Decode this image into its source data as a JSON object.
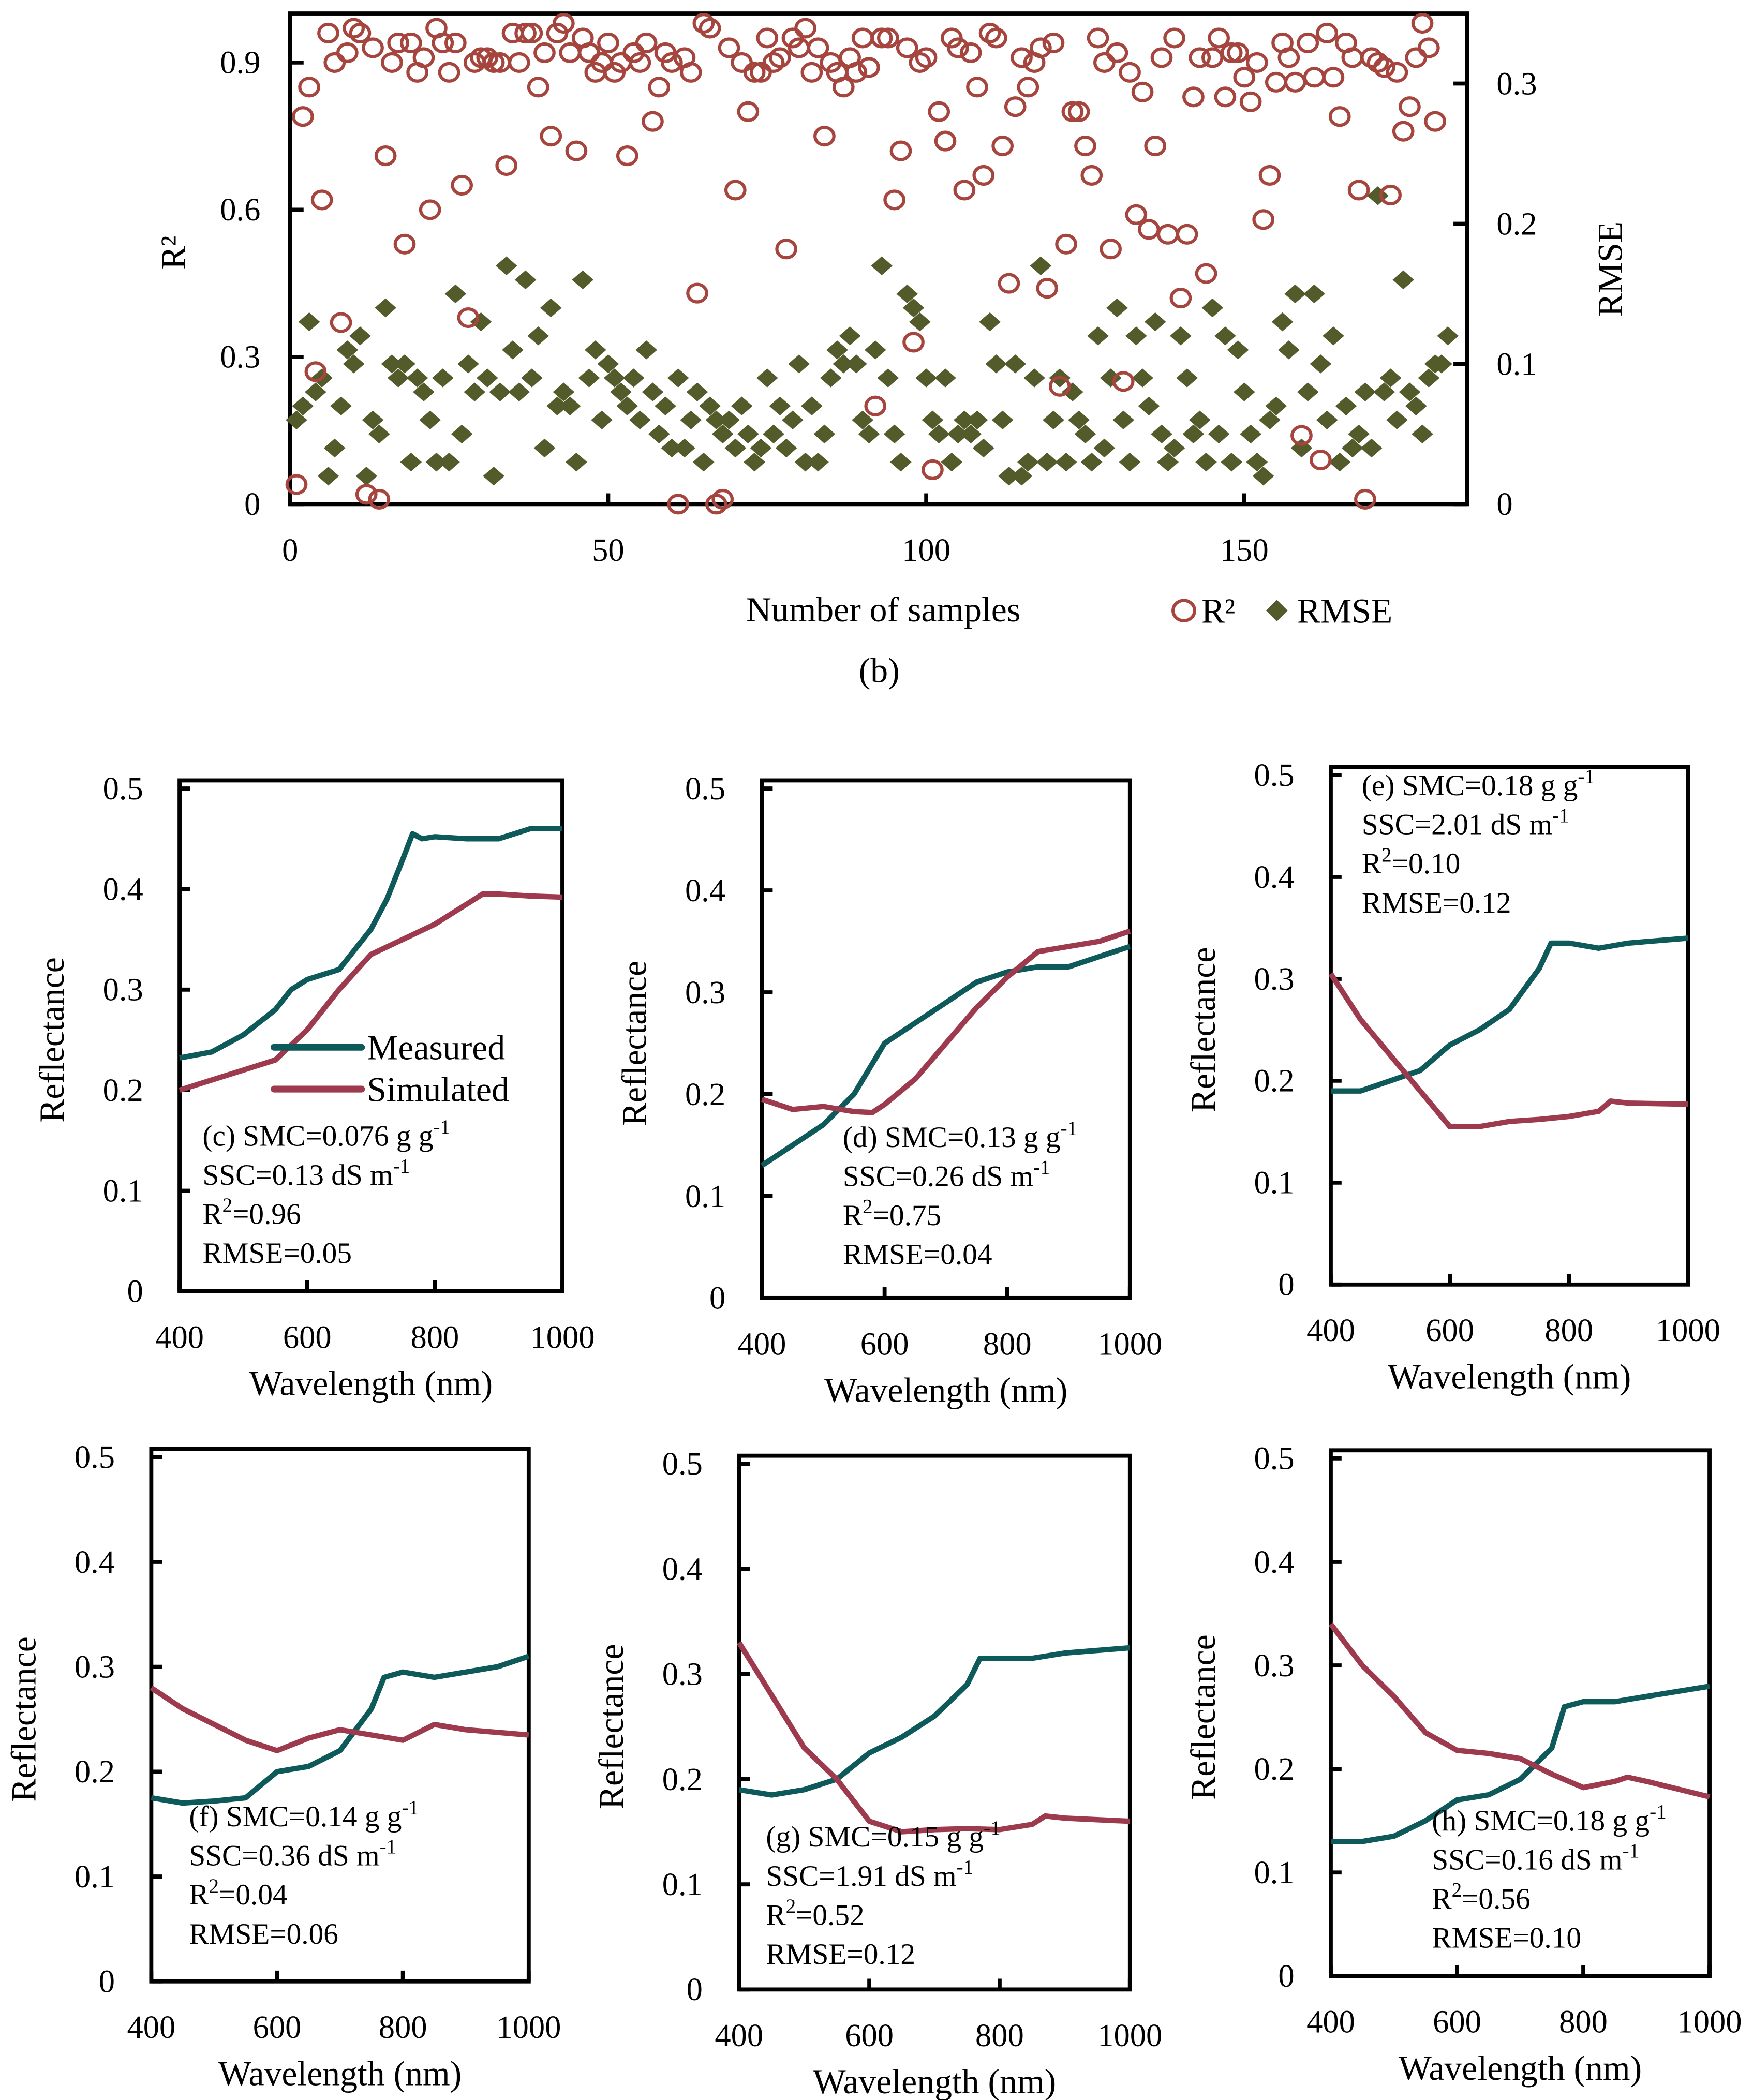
{
  "chart_data": [
    {
      "id": "b",
      "type": "scatter",
      "caption": "(b)",
      "xlabel": "Number of samples",
      "ylabel": "R²",
      "y2label": "RMSE",
      "xlim": [
        0,
        185
      ],
      "ylim": [
        0,
        1.0
      ],
      "y2lim": [
        0,
        0.35
      ],
      "xticks": [
        0,
        50,
        100,
        150
      ],
      "yticks": [
        0,
        0.3,
        0.6,
        0.9
      ],
      "y2ticks": [
        0,
        0.1,
        0.2,
        0.3
      ],
      "legend_position": "bottom-right",
      "series": [
        {
          "name": "R²",
          "axis": "left",
          "marker": "open-circle",
          "color": "#A5453E",
          "values": [
            0.04,
            0.79,
            0.85,
            0.27,
            0.62,
            0.96,
            0.9,
            0.37,
            0.92,
            0.97,
            0.96,
            0.02,
            0.93,
            0.01,
            0.71,
            0.9,
            0.94,
            0.53,
            0.94,
            0.88,
            0.91,
            0.6,
            0.97,
            0.94,
            0.88,
            0.94,
            0.65,
            0.38,
            0.9,
            0.91,
            0.91,
            0.9,
            0.9,
            0.69,
            0.96,
            0.9,
            0.96,
            0.96,
            0.85,
            0.92,
            0.75,
            0.96,
            0.98,
            0.92,
            0.72,
            0.95,
            0.92,
            0.88,
            0.9,
            0.94,
            0.88,
            0.9,
            0.71,
            0.92,
            0.9,
            0.94,
            0.78,
            0.85,
            0.92,
            0.9,
            0.0,
            0.91,
            0.88,
            0.43,
            0.98,
            0.97,
            0.0,
            0.01,
            0.93,
            0.64,
            0.9,
            0.8,
            0.88,
            0.88,
            0.95,
            0.9,
            0.91,
            0.52,
            0.95,
            0.93,
            0.97,
            0.88,
            0.93,
            0.75,
            0.9,
            0.88,
            0.85,
            0.91,
            0.88,
            0.95,
            0.89,
            0.2,
            0.95,
            0.95,
            0.62,
            0.72,
            0.93,
            0.33,
            0.9,
            0.91,
            0.07,
            0.8,
            0.74,
            0.95,
            0.93,
            0.64,
            0.92,
            0.85,
            0.67,
            0.96,
            0.95,
            0.73,
            0.45,
            0.81,
            0.91,
            0.85,
            0.9,
            0.93,
            0.44,
            0.94,
            0.24,
            0.53,
            0.8,
            0.8,
            0.73,
            0.67,
            0.95,
            0.9,
            0.52,
            0.92,
            0.25,
            0.88,
            0.59,
            0.84,
            0.56,
            0.73,
            0.91,
            0.55,
            0.95,
            0.42,
            0.55,
            0.83,
            0.91,
            0.47,
            0.91,
            0.95,
            0.83,
            0.92,
            0.92,
            0.87,
            0.82,
            0.9,
            0.58,
            0.67,
            0.86,
            0.94,
            0.91,
            0.86,
            0.14,
            0.94,
            0.87,
            0.09,
            0.96,
            0.87,
            0.79,
            0.94,
            0.91,
            0.64,
            0.01,
            0.91,
            0.9,
            0.89,
            0.63,
            0.88,
            0.76,
            0.81,
            0.91,
            0.98,
            0.93,
            0.78
          ]
        },
        {
          "name": "RMSE",
          "axis": "right",
          "marker": "filled-diamond",
          "color": "#535B2A",
          "values": [
            0.06,
            0.07,
            0.13,
            0.08,
            0.09,
            0.02,
            0.04,
            0.07,
            0.11,
            0.1,
            0.12,
            0.02,
            0.06,
            0.05,
            0.14,
            0.1,
            0.09,
            0.1,
            0.03,
            0.09,
            0.08,
            0.06,
            0.03,
            0.09,
            0.03,
            0.15,
            0.05,
            0.1,
            0.08,
            0.13,
            0.09,
            0.02,
            0.08,
            0.17,
            0.11,
            0.08,
            0.16,
            0.09,
            0.12,
            0.04,
            0.14,
            0.07,
            0.08,
            0.07,
            0.03,
            0.16,
            0.09,
            0.11,
            0.06,
            0.1,
            0.09,
            0.08,
            0.07,
            0.09,
            0.06,
            0.11,
            0.08,
            0.05,
            0.07,
            0.04,
            0.09,
            0.04,
            0.06,
            0.08,
            0.03,
            0.07,
            0.06,
            0.05,
            0.06,
            0.04,
            0.07,
            0.05,
            0.03,
            0.04,
            0.09,
            0.05,
            0.07,
            0.04,
            0.06,
            0.1,
            0.03,
            0.07,
            0.03,
            0.05,
            0.09,
            0.11,
            0.1,
            0.12,
            0.1,
            0.06,
            0.05,
            0.11,
            0.17,
            0.09,
            0.05,
            0.03,
            0.15,
            0.14,
            0.13,
            0.09,
            0.06,
            0.05,
            0.09,
            0.03,
            0.05,
            0.06,
            0.05,
            0.06,
            0.04,
            0.13,
            0.1,
            0.06,
            0.02,
            0.1,
            0.02,
            0.03,
            0.09,
            0.17,
            0.03,
            0.06,
            0.09,
            0.03,
            0.08,
            0.06,
            0.05,
            0.03,
            0.12,
            0.04,
            0.09,
            0.14,
            0.06,
            0.03,
            0.12,
            0.09,
            0.07,
            0.13,
            0.05,
            0.03,
            0.04,
            0.12,
            0.09,
            0.05,
            0.06,
            0.03,
            0.14,
            0.05,
            0.12,
            0.03,
            0.11,
            0.08,
            0.05,
            0.03,
            0.02,
            0.06,
            0.07,
            0.13,
            0.11,
            0.15,
            0.04,
            0.08,
            0.15,
            0.1,
            0.06,
            0.12,
            0.03,
            0.07,
            0.04,
            0.05,
            0.08,
            0.04,
            0.22,
            0.08,
            0.09,
            0.06,
            0.16,
            0.08,
            0.07,
            0.05,
            0.09,
            0.1,
            0.1,
            0.12
          ]
        }
      ]
    },
    {
      "id": "c",
      "type": "line",
      "xlabel": "Wavelength (nm)",
      "ylabel": "Reflectance",
      "xlim": [
        400,
        1000
      ],
      "ylim": [
        0,
        0.5
      ],
      "xticks": [
        400,
        600,
        800,
        1000
      ],
      "yticks": [
        0,
        0.1,
        0.2,
        0.3,
        0.4,
        0.5
      ],
      "legend": [
        "Measured",
        "Simulated"
      ],
      "legend_position": "middle-right",
      "annotation": [
        {
          "text": "(c) SMC=0.076 g g",
          "sup": "-1"
        },
        {
          "text": "SSC=0.13 dS m",
          "sup": "-1"
        },
        {
          "text": "R",
          "sup": "2",
          "after": "=0.96"
        },
        {
          "text": "RMSE=0.05"
        }
      ],
      "series": [
        {
          "name": "Measured",
          "color": "#0E5A5A",
          "x": [
            400,
            450,
            500,
            550,
            575,
            600,
            650,
            700,
            725,
            750,
            765,
            780,
            800,
            850,
            900,
            950,
            1000
          ],
          "y": [
            0.232,
            0.238,
            0.255,
            0.28,
            0.3,
            0.31,
            0.32,
            0.36,
            0.39,
            0.43,
            0.455,
            0.45,
            0.452,
            0.45,
            0.45,
            0.46,
            0.46
          ]
        },
        {
          "name": "Simulated",
          "color": "#9E3A4E",
          "x": [
            400,
            450,
            500,
            550,
            600,
            650,
            700,
            750,
            800,
            850,
            875,
            900,
            950,
            1000
          ],
          "y": [
            0.2,
            0.21,
            0.22,
            0.23,
            0.26,
            0.3,
            0.335,
            0.35,
            0.365,
            0.385,
            0.395,
            0.395,
            0.393,
            0.392
          ]
        }
      ]
    },
    {
      "id": "d",
      "type": "line",
      "xlabel": "Wavelength (nm)",
      "ylabel": "Reflectance",
      "xlim": [
        400,
        1000
      ],
      "ylim": [
        0,
        0.5
      ],
      "xticks": [
        400,
        600,
        800,
        1000
      ],
      "yticks": [
        0,
        0.1,
        0.2,
        0.3,
        0.4,
        0.5
      ],
      "annotation": [
        {
          "text": "(d) SMC=0.13 g g",
          "sup": "-1"
        },
        {
          "text": "SSC=0.26 dS m",
          "sup": "-1"
        },
        {
          "text": "R",
          "sup": "2",
          "after": "=0.75"
        },
        {
          "text": "RMSE=0.04"
        }
      ],
      "series": [
        {
          "name": "Measured",
          "color": "#0E5A5A",
          "x": [
            400,
            450,
            500,
            550,
            600,
            650,
            700,
            750,
            800,
            850,
            900,
            950,
            1000
          ],
          "y": [
            0.13,
            0.15,
            0.17,
            0.2,
            0.25,
            0.27,
            0.29,
            0.31,
            0.32,
            0.325,
            0.325,
            0.335,
            0.345
          ]
        },
        {
          "name": "Simulated",
          "color": "#9E3A4E",
          "x": [
            400,
            450,
            500,
            550,
            580,
            600,
            650,
            700,
            750,
            800,
            850,
            900,
            950,
            1000
          ],
          "y": [
            0.195,
            0.185,
            0.188,
            0.183,
            0.182,
            0.19,
            0.215,
            0.25,
            0.285,
            0.315,
            0.34,
            0.345,
            0.35,
            0.36
          ]
        }
      ]
    },
    {
      "id": "e",
      "type": "line",
      "xlabel": "Wavelength (nm)",
      "ylabel": "Reflectance",
      "xlim": [
        400,
        1000
      ],
      "ylim": [
        0,
        0.5
      ],
      "xticks": [
        400,
        600,
        800,
        1000
      ],
      "yticks": [
        0,
        0.1,
        0.2,
        0.3,
        0.4,
        0.5
      ],
      "annotation": [
        {
          "text": "(e) SMC=0.18 g g",
          "sup": "-1"
        },
        {
          "text": "SSC=2.01 dS m",
          "sup": "-1"
        },
        {
          "text": "R",
          "sup": "2",
          "after": "=0.10"
        },
        {
          "text": "RMSE=0.12"
        }
      ],
      "series": [
        {
          "name": "Measured",
          "color": "#0E5A5A",
          "x": [
            400,
            450,
            500,
            550,
            600,
            650,
            700,
            750,
            770,
            800,
            850,
            900,
            1000
          ],
          "y": [
            0.19,
            0.19,
            0.2,
            0.21,
            0.235,
            0.25,
            0.27,
            0.31,
            0.335,
            0.335,
            0.33,
            0.335,
            0.34
          ]
        },
        {
          "name": "Simulated",
          "color": "#9E3A4E",
          "x": [
            400,
            450,
            500,
            550,
            600,
            650,
            700,
            750,
            800,
            850,
            870,
            900,
            1000
          ],
          "y": [
            0.305,
            0.26,
            0.225,
            0.19,
            0.155,
            0.155,
            0.16,
            0.162,
            0.165,
            0.17,
            0.18,
            0.178,
            0.177
          ]
        }
      ]
    },
    {
      "id": "f",
      "type": "line",
      "xlabel": "Wavelength (nm)",
      "ylabel": "Reflectance",
      "xlim": [
        400,
        1000
      ],
      "ylim": [
        0,
        0.5
      ],
      "xticks": [
        400,
        600,
        800,
        1000
      ],
      "yticks": [
        0,
        0.1,
        0.2,
        0.3,
        0.4,
        0.5
      ],
      "annotation": [
        {
          "text": "(f) SMC=0.14 g g",
          "sup": "-1"
        },
        {
          "text": "SSC=0.36 dS m",
          "sup": "-1"
        },
        {
          "text": "R",
          "sup": "2",
          "after": "=0.04"
        },
        {
          "text": "RMSE=0.06"
        }
      ],
      "series": [
        {
          "name": "Measured",
          "color": "#0E5A5A",
          "x": [
            400,
            450,
            500,
            550,
            600,
            650,
            700,
            750,
            770,
            800,
            850,
            900,
            950,
            1000
          ],
          "y": [
            0.175,
            0.17,
            0.172,
            0.175,
            0.2,
            0.205,
            0.22,
            0.26,
            0.29,
            0.295,
            0.29,
            0.295,
            0.3,
            0.31
          ]
        },
        {
          "name": "Simulated",
          "color": "#9E3A4E",
          "x": [
            400,
            450,
            500,
            550,
            600,
            650,
            700,
            750,
            800,
            850,
            900,
            1000
          ],
          "y": [
            0.28,
            0.26,
            0.245,
            0.23,
            0.22,
            0.232,
            0.24,
            0.235,
            0.23,
            0.245,
            0.24,
            0.235
          ]
        }
      ]
    },
    {
      "id": "g",
      "type": "line",
      "xlabel": "Wavelength (nm)",
      "ylabel": "Reflectance",
      "xlim": [
        400,
        1000
      ],
      "ylim": [
        0,
        0.5
      ],
      "xticks": [
        400,
        600,
        800,
        1000
      ],
      "yticks": [
        0,
        0.1,
        0.2,
        0.3,
        0.4,
        0.5
      ],
      "annotation": [
        {
          "text": "(g) SMC=0.15 g g",
          "sup": "-1"
        },
        {
          "text": "SSC=1.91 dS m",
          "sup": "-1"
        },
        {
          "text": "R",
          "sup": "2",
          "after": "=0.52"
        },
        {
          "text": "RMSE=0.12"
        }
      ],
      "series": [
        {
          "name": "Measured",
          "color": "#0E5A5A",
          "x": [
            400,
            450,
            500,
            550,
            600,
            650,
            700,
            750,
            770,
            800,
            850,
            900,
            1000
          ],
          "y": [
            0.19,
            0.185,
            0.19,
            0.2,
            0.225,
            0.24,
            0.26,
            0.29,
            0.315,
            0.315,
            0.315,
            0.32,
            0.325
          ]
        },
        {
          "name": "Simulated",
          "color": "#9E3A4E",
          "x": [
            400,
            450,
            500,
            550,
            600,
            650,
            700,
            750,
            800,
            850,
            870,
            900,
            1000
          ],
          "y": [
            0.33,
            0.28,
            0.23,
            0.2,
            0.16,
            0.15,
            0.152,
            0.153,
            0.152,
            0.157,
            0.165,
            0.163,
            0.16
          ]
        }
      ]
    },
    {
      "id": "h",
      "type": "line",
      "xlabel": "Wavelength (nm)",
      "ylabel": "Reflectance",
      "xlim": [
        400,
        1000
      ],
      "ylim": [
        0,
        0.5
      ],
      "xticks": [
        400,
        600,
        800,
        1000
      ],
      "yticks": [
        0,
        0.1,
        0.2,
        0.3,
        0.4,
        0.5
      ],
      "annotation": [
        {
          "text": "(h) SMC=0.18 g g",
          "sup": "-1"
        },
        {
          "text": "SSC=0.16 dS m",
          "sup": "-1"
        },
        {
          "text": "R",
          "sup": "2",
          "after": "=0.56"
        },
        {
          "text": "RMSE=0.10"
        }
      ],
      "series": [
        {
          "name": "Measured",
          "color": "#0E5A5A",
          "x": [
            400,
            450,
            500,
            550,
            600,
            650,
            700,
            750,
            770,
            800,
            850,
            900,
            950,
            1000
          ],
          "y": [
            0.13,
            0.13,
            0.135,
            0.15,
            0.17,
            0.175,
            0.19,
            0.22,
            0.26,
            0.265,
            0.265,
            0.27,
            0.275,
            0.28
          ]
        },
        {
          "name": "Simulated",
          "color": "#9E3A4E",
          "x": [
            400,
            450,
            500,
            550,
            600,
            650,
            700,
            750,
            800,
            850,
            870,
            900,
            1000
          ],
          "y": [
            0.34,
            0.3,
            0.27,
            0.235,
            0.218,
            0.215,
            0.21,
            0.195,
            0.182,
            0.188,
            0.192,
            0.188,
            0.173
          ]
        }
      ]
    }
  ]
}
